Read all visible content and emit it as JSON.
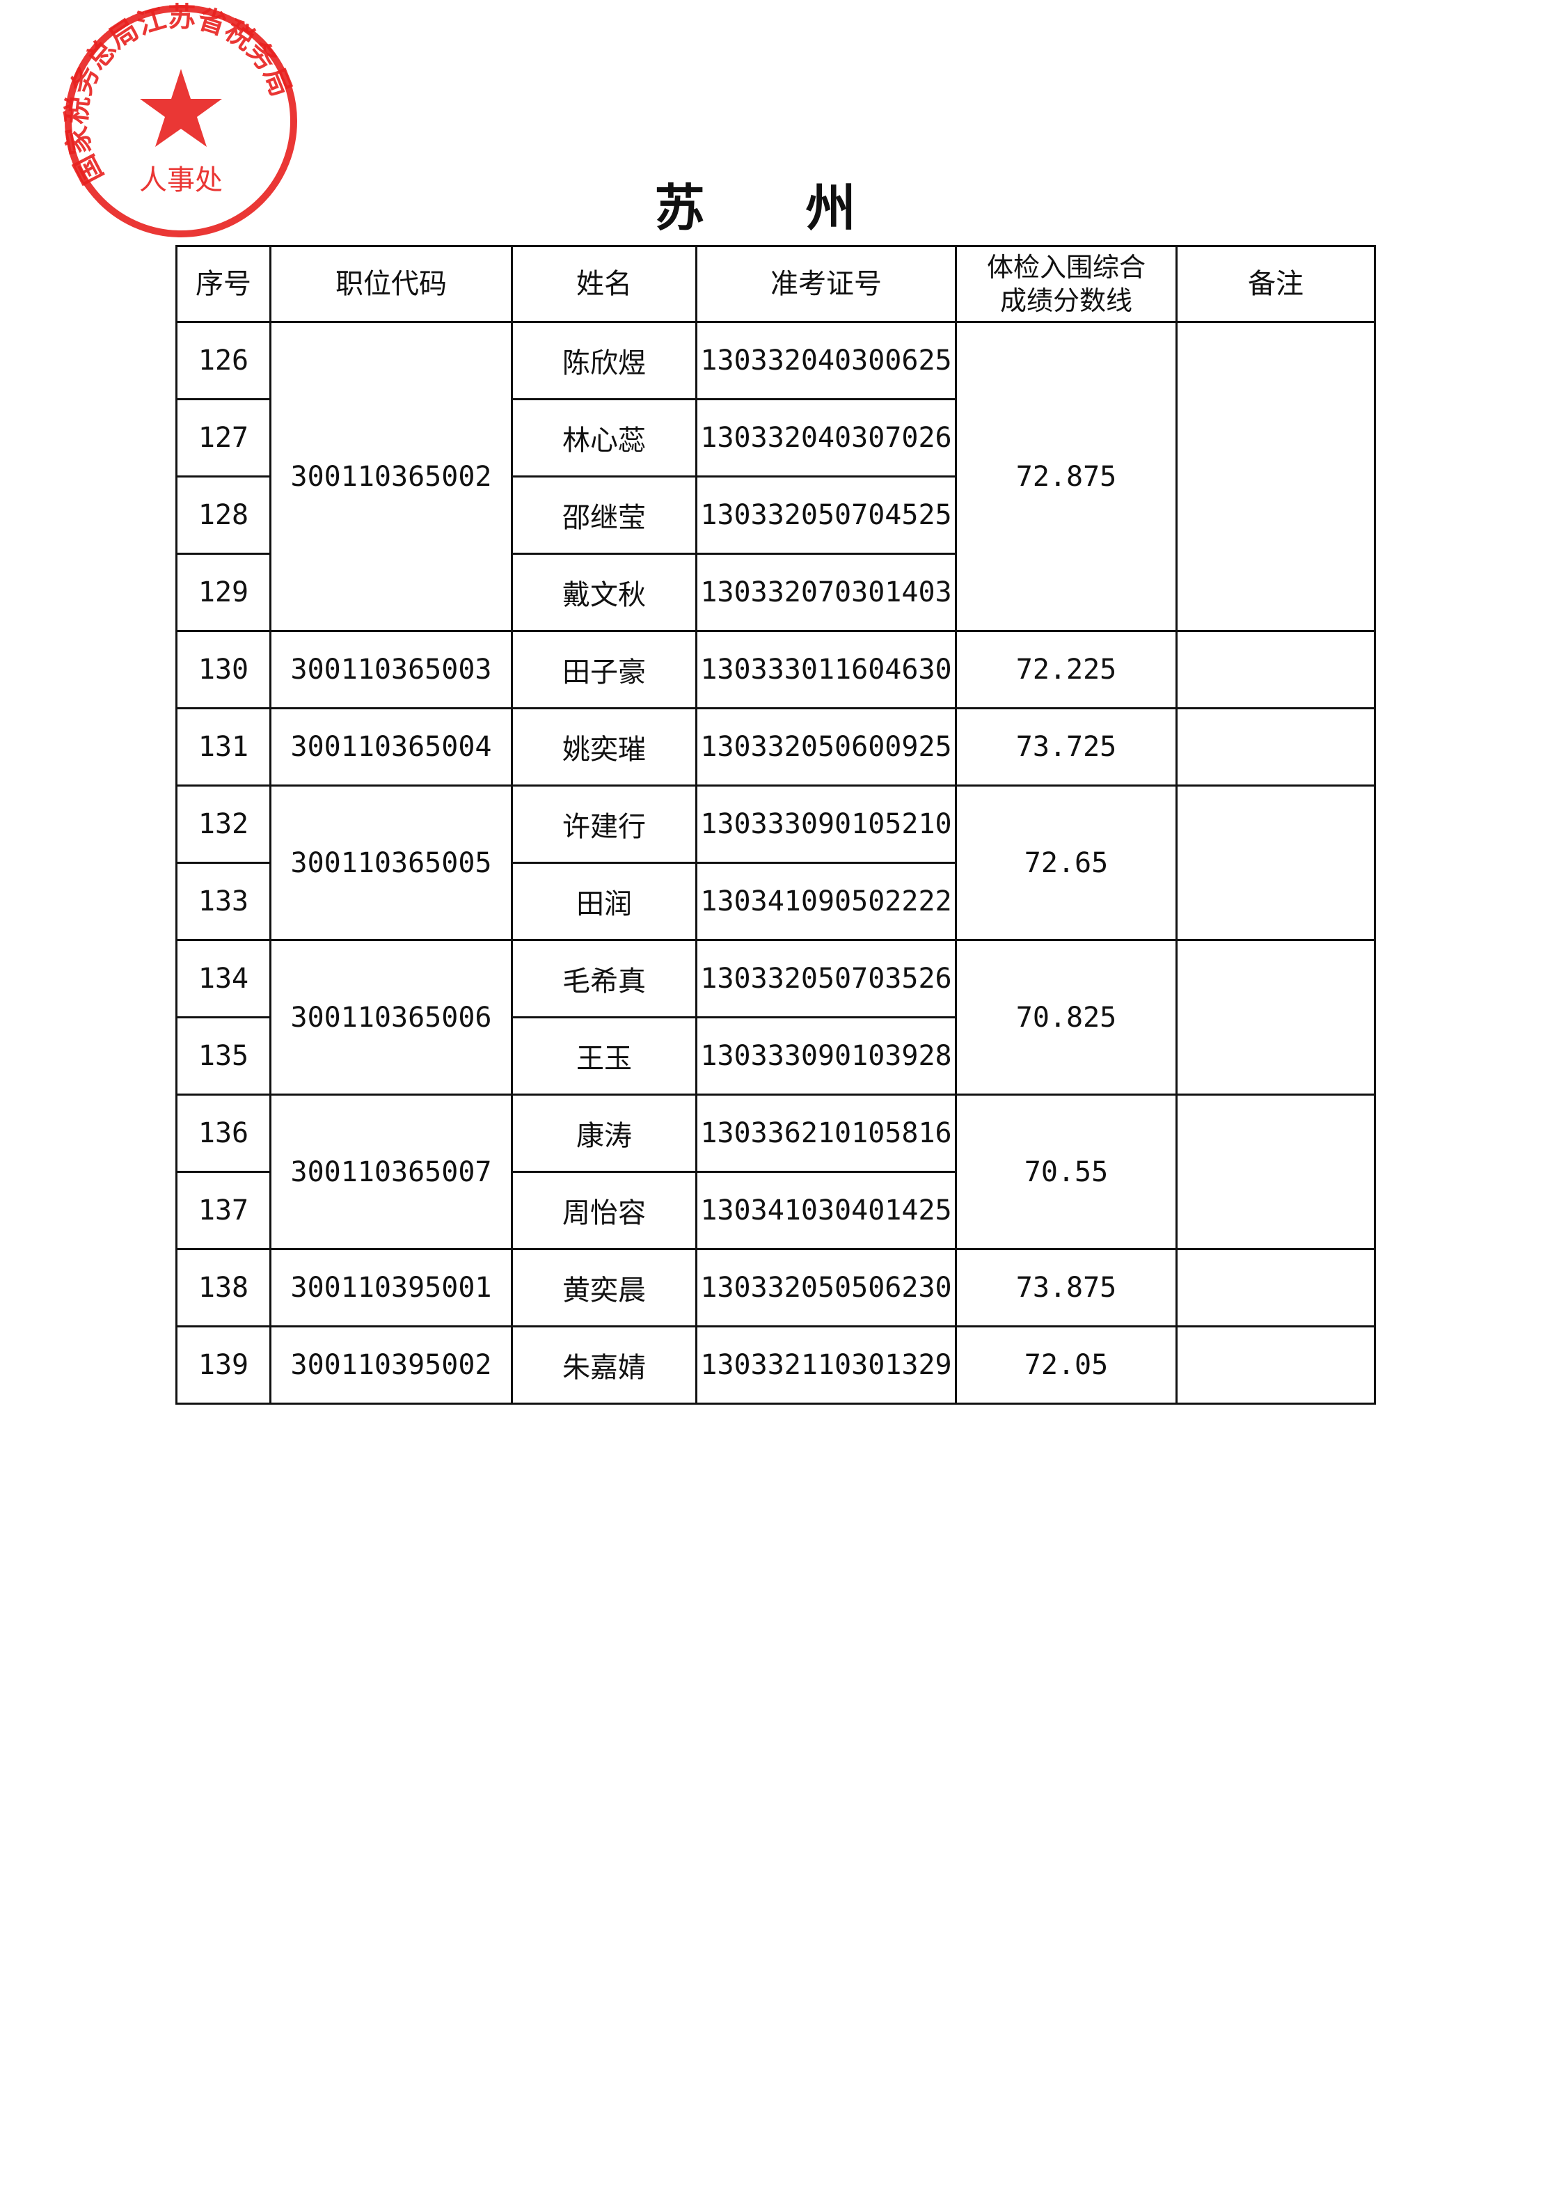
{
  "title": "苏  州",
  "headers": [
    "序号",
    "职位代码",
    "姓名",
    "准考证号",
    "体检入围综合成绩分数线",
    "备注"
  ],
  "header_score_lines": [
    "体检入围综合",
    "成绩分数线"
  ],
  "groups": [
    {
      "code": "300110365002",
      "score": "72.875",
      "rows": [
        {
          "no": "126",
          "name": "陈欣煜",
          "id": "130332040300625"
        },
        {
          "no": "127",
          "name": "林心蕊",
          "id": "130332040307026"
        },
        {
          "no": "128",
          "name": "邵继莹",
          "id": "130332050704525"
        },
        {
          "no": "129",
          "name": "戴文秋",
          "id": "130332070301403"
        }
      ]
    },
    {
      "code": "300110365003",
      "score": "72.225",
      "rows": [
        {
          "no": "130",
          "name": "田子豪",
          "id": "130333011604630"
        }
      ]
    },
    {
      "code": "300110365004",
      "score": "73.725",
      "rows": [
        {
          "no": "131",
          "name": "姚奕璀",
          "id": "130332050600925"
        }
      ]
    },
    {
      "code": "300110365005",
      "score": "72.65",
      "rows": [
        {
          "no": "132",
          "name": "许建行",
          "id": "130333090105210"
        },
        {
          "no": "133",
          "name": "田润",
          "id": "130341090502222"
        }
      ]
    },
    {
      "code": "300110365006",
      "score": "70.825",
      "rows": [
        {
          "no": "134",
          "name": "毛希真",
          "id": "130332050703526"
        },
        {
          "no": "135",
          "name": "王玉",
          "id": "130333090103928"
        }
      ]
    },
    {
      "code": "300110365007",
      "score": "70.55",
      "rows": [
        {
          "no": "136",
          "name": "康涛",
          "id": "130336210105816"
        },
        {
          "no": "137",
          "name": "周怡容",
          "id": "130341030401425"
        }
      ]
    },
    {
      "code": "300110395001",
      "score": "73.875",
      "rows": [
        {
          "no": "138",
          "name": "黄奕晨",
          "id": "130332050506230"
        }
      ]
    },
    {
      "code": "300110395002",
      "score": "72.05",
      "rows": [
        {
          "no": "139",
          "name": "朱嘉婧",
          "id": "130332110301329"
        }
      ]
    }
  ],
  "stamp": {
    "text": "国家税务总局江苏省税务局人事处",
    "color": "#e8211f"
  }
}
